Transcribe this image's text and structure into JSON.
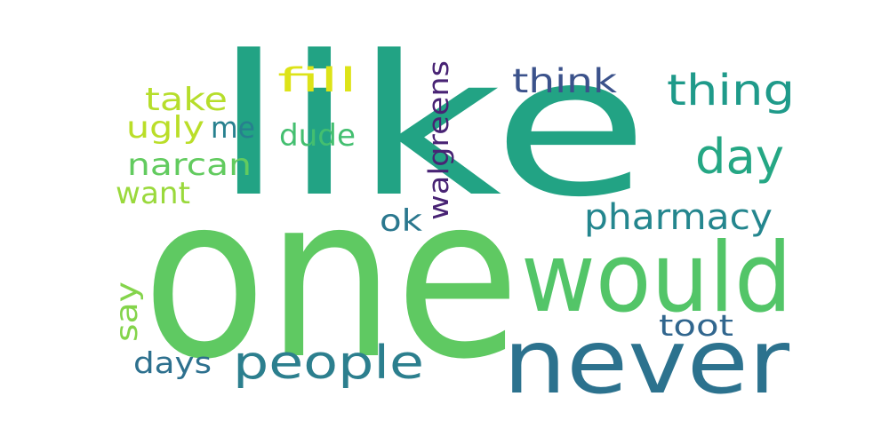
{
  "words": [
    {
      "text": "like",
      "color": "#22a384"
    },
    {
      "text": "one",
      "color": "#5fc962"
    },
    {
      "text": "would",
      "color": "#53c568"
    },
    {
      "text": "never",
      "color": "#2c728e"
    },
    {
      "text": "people",
      "color": "#2c7f8e"
    },
    {
      "text": "thing",
      "color": "#1f9a8a"
    },
    {
      "text": "day",
      "color": "#25a784"
    },
    {
      "text": "pharmacy",
      "color": "#24868e"
    },
    {
      "text": "think",
      "color": "#3b528b"
    },
    {
      "text": "walgreens",
      "color": "#482374"
    },
    {
      "text": "fill",
      "color": "#dde318"
    },
    {
      "text": "take",
      "color": "#b6de2b"
    },
    {
      "text": "ugly",
      "color": "#bade28"
    },
    {
      "text": "me",
      "color": "#27808e"
    },
    {
      "text": "dude",
      "color": "#44bf70"
    },
    {
      "text": "narcan",
      "color": "#62cb5f"
    },
    {
      "text": "want",
      "color": "#9ad93c"
    },
    {
      "text": "ok",
      "color": "#2a778e"
    },
    {
      "text": "say",
      "color": "#84d44b"
    },
    {
      "text": "toot",
      "color": "#31668e"
    },
    {
      "text": "days",
      "color": "#2d708e"
    }
  ]
}
